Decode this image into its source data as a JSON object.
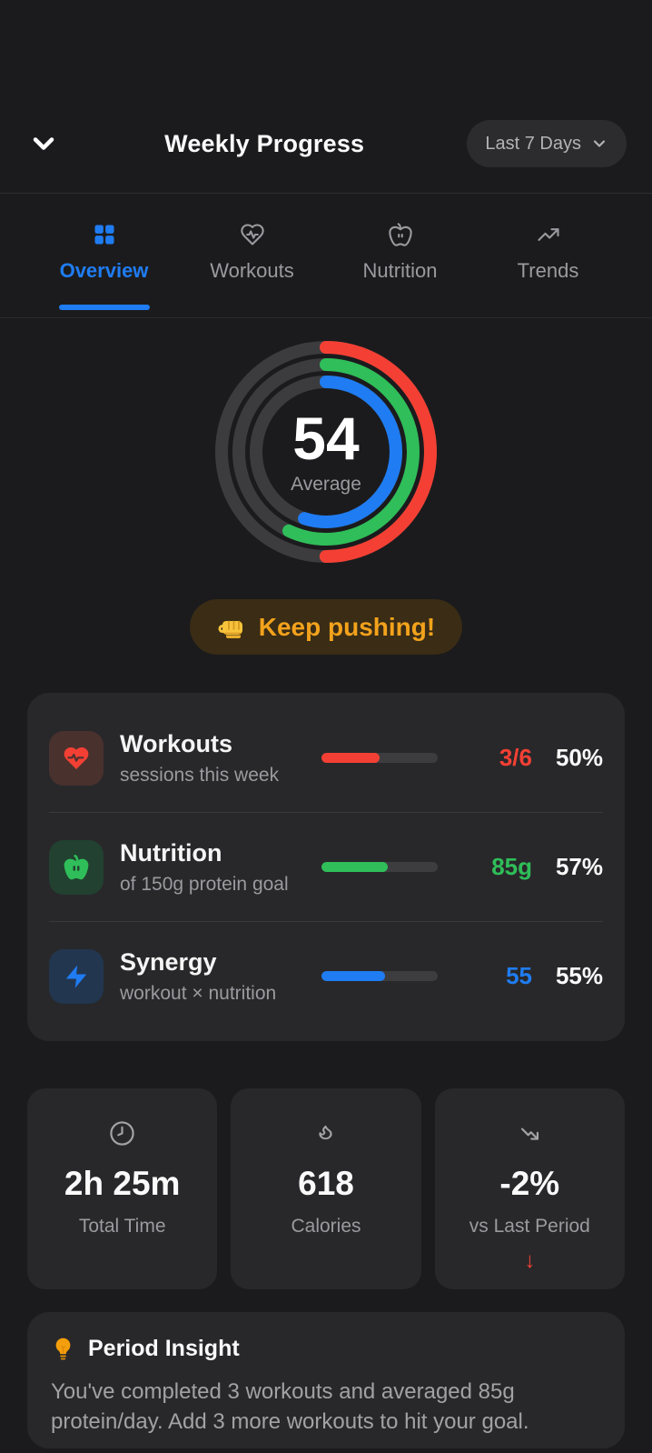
{
  "theme": {
    "accent_blue": "#1f7cf2",
    "red": "#f44034",
    "green": "#2fbe59",
    "amber": "#f2a21c",
    "page_bg": "#1b1b1d",
    "card_bg": "#28282a"
  },
  "header": {
    "title": "Weekly Progress",
    "period_selector": "Last 7 Days",
    "collapse_icon": "chevron-down-icon"
  },
  "tabs": [
    {
      "label": "Overview",
      "icon": "grid-icon",
      "active": true
    },
    {
      "label": "Workouts",
      "icon": "heart-pulse-icon",
      "active": false
    },
    {
      "label": "Nutrition",
      "icon": "apple-icon",
      "active": false
    },
    {
      "label": "Trends",
      "icon": "trending-up-icon",
      "active": false
    }
  ],
  "summary_ring": {
    "value": "54",
    "label": "Average",
    "track_color": "#3c3c3f",
    "rings": [
      {
        "name": "workouts",
        "percent": 50,
        "color": "#f44034"
      },
      {
        "name": "nutrition",
        "percent": 57,
        "color": "#2fbe59"
      },
      {
        "name": "synergy",
        "percent": 55,
        "color": "#1f7cf2"
      }
    ]
  },
  "motivation_badge": {
    "icon": "fist-emoji",
    "text": "Keep pushing!"
  },
  "metrics": [
    {
      "title": "Workouts",
      "subtitle": "sessions this week",
      "value": "3/6",
      "percent": "50%",
      "progress": 50,
      "color": "#f44034",
      "tile_bg": "#49312e",
      "icon": "heart-pulse-icon"
    },
    {
      "title": "Nutrition",
      "subtitle": "of 150g protein goal",
      "value": "85g",
      "percent": "57%",
      "progress": 57,
      "color": "#2fbe59",
      "tile_bg": "#224130",
      "icon": "apple-icon"
    },
    {
      "title": "Synergy",
      "subtitle": "workout × nutrition",
      "value": "55",
      "percent": "55%",
      "progress": 55,
      "color": "#1f7cf2",
      "tile_bg": "#22364f",
      "icon": "zap-icon"
    }
  ],
  "stats": [
    {
      "icon": "clock-icon",
      "value": "2h 25m",
      "label": "Total Time"
    },
    {
      "icon": "flame-icon",
      "value": "618",
      "label": "Calories"
    },
    {
      "icon": "trending-down-icon",
      "value": "-2%",
      "label": "vs Last Period",
      "trend_arrow": "↓"
    }
  ],
  "insight": {
    "icon": "lightbulb-emoji",
    "title": "Period Insight",
    "body": "You've completed 3 workouts and averaged 85g protein/day. Add 3 more workouts to hit your goal."
  }
}
